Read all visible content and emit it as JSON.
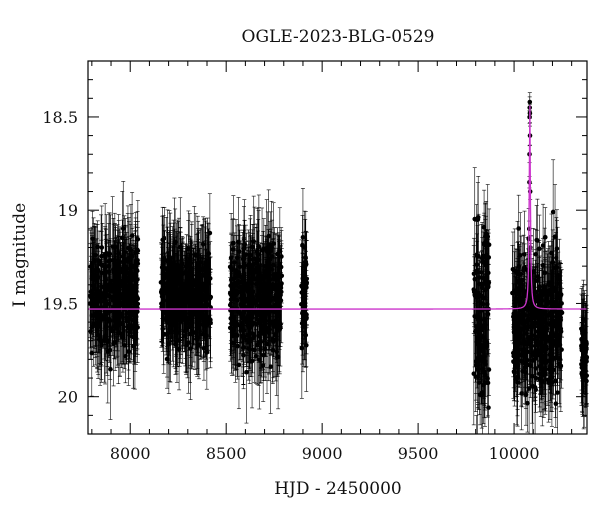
{
  "chart_data": {
    "type": "scatter",
    "title": "OGLE-2023-BLG-0529",
    "xlabel": "HJD - 2450000",
    "ylabel": "I magnitude",
    "xlim": [
      7780,
      10380
    ],
    "ylim": [
      18.2,
      20.2
    ],
    "y_inverted": true,
    "grid": false,
    "legend": "none",
    "x_ticks": [
      8000,
      8500,
      9000,
      9500,
      10000
    ],
    "x_tick_labels": [
      "8000",
      "8500",
      "9000",
      "9500",
      "10000"
    ],
    "y_ticks": [
      18.5,
      19,
      19.5,
      20
    ],
    "y_tick_labels": [
      "18.5",
      "19",
      "19.5",
      "20"
    ],
    "colors": {
      "data": "#000000",
      "model": "#cc33cc"
    },
    "series": [
      {
        "kind": "points_with_errorbars",
        "seasons": [
          {
            "x_range": [
              7790,
              8040
            ],
            "mag_mean": 19.45,
            "mag_scatter": 0.13
          },
          {
            "x_range": [
              8160,
              8420
            ],
            "mag_mean": 19.45,
            "mag_scatter": 0.12
          },
          {
            "x_range": [
              8520,
              8790
            ],
            "mag_mean": 19.48,
            "mag_scatter": 0.14
          },
          {
            "x_range": [
              8890,
              8920
            ],
            "mag_mean": 19.45,
            "mag_scatter": 0.12
          },
          {
            "x_range": [
              9790,
              9870
            ],
            "mag_mean": 19.55,
            "mag_scatter": 0.22
          },
          {
            "x_range": [
              9990,
              10250
            ],
            "mag_mean": 19.6,
            "mag_scatter": 0.18
          },
          {
            "x_range": [
              10350,
              10380
            ],
            "mag_mean": 19.75,
            "mag_scatter": 0.1
          }
        ],
        "peak_points": [
          {
            "x": 10078,
            "y": 19.4
          },
          {
            "x": 10079,
            "y": 19.1
          },
          {
            "x": 10080,
            "y": 18.85
          },
          {
            "x": 10080.5,
            "y": 18.7
          },
          {
            "x": 10081,
            "y": 18.5
          },
          {
            "x": 10081.5,
            "y": 18.45
          },
          {
            "x": 10082,
            "y": 18.42
          },
          {
            "x": 10082.5,
            "y": 18.48
          },
          {
            "x": 10083,
            "y": 18.6
          },
          {
            "x": 10084,
            "y": 18.9
          },
          {
            "x": 10085,
            "y": 19.2
          },
          {
            "x": 10087,
            "y": 19.4
          }
        ]
      },
      {
        "kind": "model_line",
        "baseline": 19.53,
        "peak_x": 10082,
        "peak_mag": 18.42,
        "width_days": 3.5
      }
    ]
  }
}
